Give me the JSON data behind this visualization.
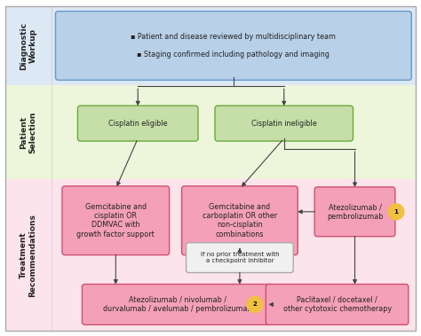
{
  "bg_color": "#ffffff",
  "section_colors": {
    "diagnostic": "#dde8f5",
    "patient": "#edf5db",
    "treatment": "#fce4ec"
  },
  "section_labels": {
    "diagnostic": "Diagnostic\nWorkup",
    "patient": "Patient\nSelection",
    "treatment": "Treatment\nRecommendations"
  },
  "box_blue_face": "#b8d0e8",
  "box_blue_border": "#6699cc",
  "box_green_face": "#c6dfa8",
  "box_green_border": "#6aaa3a",
  "box_pink_face": "#f4a0b8",
  "box_pink_border": "#d05070",
  "box_white_face": "#f0f0f0",
  "box_white_border": "#aaaaaa",
  "circle_color": "#f0c040",
  "arrow_color": "#444444",
  "text_color": "#222222",
  "font_size": 5.8,
  "small_font_size": 5.0,
  "label_font_size": 6.5
}
